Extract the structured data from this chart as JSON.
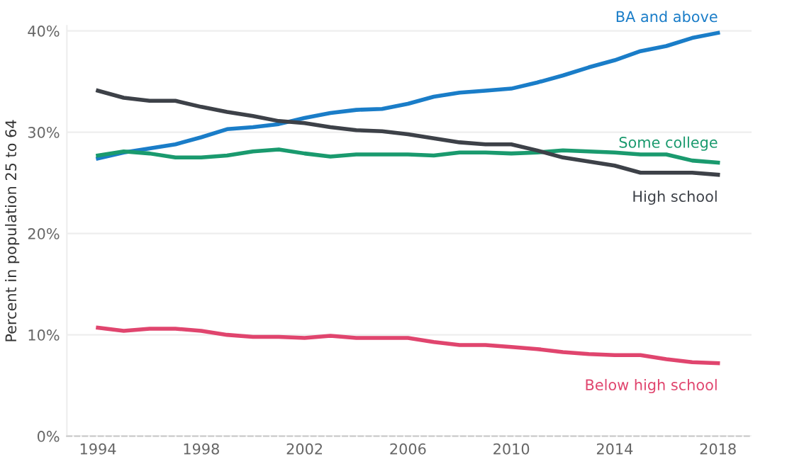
{
  "chart_data": {
    "type": "line",
    "ylabel": "Percent in population 25 to 64",
    "x": [
      1994,
      1995,
      1996,
      1997,
      1998,
      1999,
      2000,
      2001,
      2002,
      2003,
      2004,
      2005,
      2006,
      2007,
      2008,
      2009,
      2010,
      2011,
      2012,
      2013,
      2014,
      2015,
      2016,
      2017,
      2018
    ],
    "series": [
      {
        "name": "BA and above",
        "color": "#1a7dc8",
        "values": [
          27.4,
          28.0,
          28.4,
          28.8,
          29.5,
          30.3,
          30.5,
          30.8,
          31.4,
          31.9,
          32.2,
          32.3,
          32.8,
          33.5,
          33.9,
          34.1,
          34.3,
          34.9,
          35.6,
          36.4,
          37.1,
          38.0,
          38.5,
          39.3,
          39.8
        ]
      },
      {
        "name": "Some college",
        "color": "#1a9a6e",
        "values": [
          27.7,
          28.1,
          27.9,
          27.5,
          27.5,
          27.7,
          28.1,
          28.3,
          27.9,
          27.6,
          27.8,
          27.8,
          27.8,
          27.7,
          28.0,
          28.0,
          27.9,
          28.0,
          28.2,
          28.1,
          28.0,
          27.8,
          27.8,
          27.2,
          27.0
        ]
      },
      {
        "name": "High school",
        "color": "#3d4148",
        "values": [
          34.1,
          33.4,
          33.1,
          33.1,
          32.5,
          32.0,
          31.6,
          31.1,
          30.9,
          30.5,
          30.2,
          30.1,
          29.8,
          29.4,
          29.0,
          28.8,
          28.8,
          28.2,
          27.5,
          27.1,
          26.7,
          26.0,
          26.0,
          26.0,
          25.8
        ]
      },
      {
        "name": "Below high school",
        "color": "#e0456e",
        "values": [
          10.7,
          10.4,
          10.6,
          10.6,
          10.4,
          10.0,
          9.8,
          9.8,
          9.7,
          9.9,
          9.7,
          9.7,
          9.7,
          9.3,
          9.0,
          9.0,
          8.8,
          8.6,
          8.3,
          8.1,
          8.0,
          8.0,
          7.6,
          7.3,
          7.2
        ]
      }
    ],
    "xlim": [
      1992.8,
      2019.3
    ],
    "xticks": [
      1994,
      1998,
      2002,
      2006,
      2010,
      2014,
      2018
    ],
    "ylim": [
      0,
      40.5
    ],
    "yticks": [
      {
        "value": 0,
        "label": "0%"
      },
      {
        "value": 10,
        "label": "10%"
      },
      {
        "value": 20,
        "label": "20%"
      },
      {
        "value": 30,
        "label": "30%"
      },
      {
        "value": 40,
        "label": "40%"
      }
    ],
    "grid": "y",
    "legend": false,
    "marker": "none",
    "line_style": "solid"
  }
}
